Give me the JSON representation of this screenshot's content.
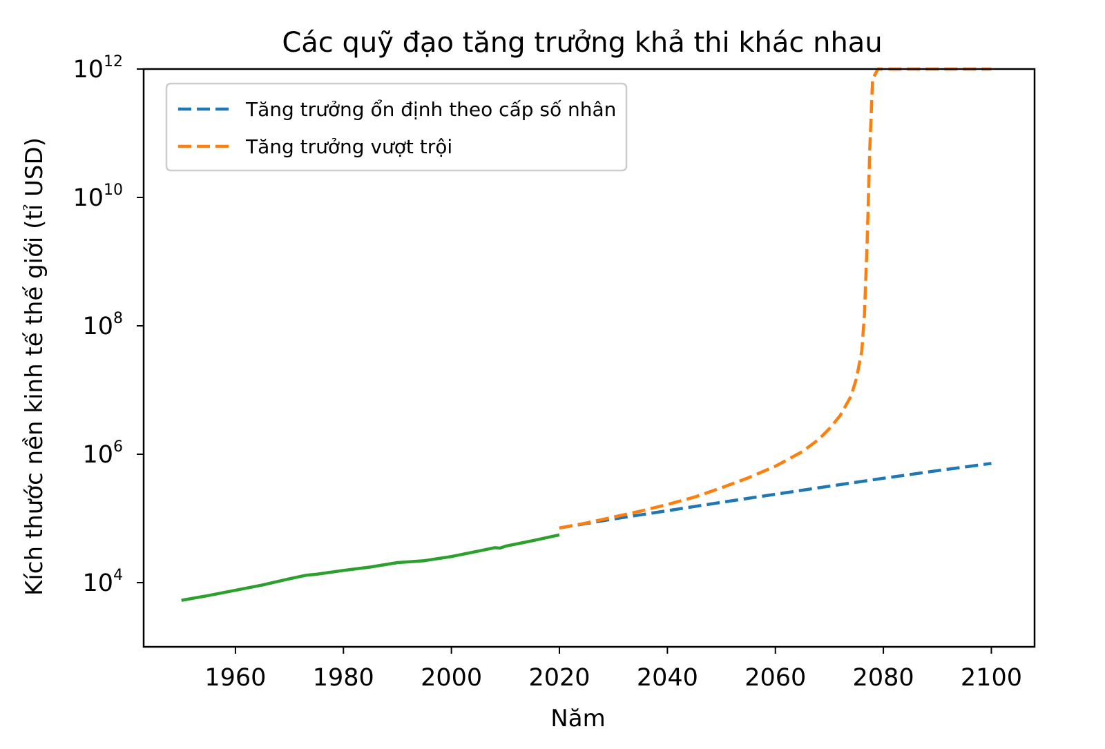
{
  "chart_data": {
    "type": "line",
    "title": "Các quỹ đạo tăng trưởng khả thi khác nhau",
    "xlabel": "Năm",
    "ylabel": "Kích thước nền kinh tế thế giới (tỉ USD)",
    "xlim": [
      1943,
      2108
    ],
    "ylim": [
      1000,
      1000000000000
    ],
    "yscale": "log",
    "grid": false,
    "legend_position": "top-left",
    "x_ticks": [
      "1960",
      "1980",
      "2000",
      "2020",
      "2040",
      "2060",
      "2080",
      "2100"
    ],
    "x_tick_values": [
      1960,
      1980,
      2000,
      2020,
      2040,
      2060,
      2080,
      2100
    ],
    "y_ticks": [
      {
        "value": 10000,
        "base": "10",
        "exp": "4"
      },
      {
        "value": 1000000,
        "base": "10",
        "exp": "6"
      },
      {
        "value": 100000000,
        "base": "10",
        "exp": "8"
      },
      {
        "value": 10000000000,
        "base": "10",
        "exp": "10"
      },
      {
        "value": 1000000000000,
        "base": "10",
        "exp": "12"
      }
    ],
    "series": [
      {
        "name": "Tăng trưởng ổn định theo cấp số nhân",
        "color": "#1f77b4",
        "style": "dashed",
        "x": [
          2020,
          2030,
          2040,
          2050,
          2060,
          2070,
          2080,
          2090,
          2100
        ],
        "y": [
          71000,
          98000,
          132000,
          178000,
          238000,
          318000,
          422000,
          555000,
          720000
        ]
      },
      {
        "name": "Tăng trưởng vượt trội",
        "color": "#ff7f0e",
        "style": "dashed",
        "x": [
          2020,
          2025,
          2030,
          2035,
          2040,
          2045,
          2050,
          2055,
          2060,
          2065,
          2068,
          2070,
          2072,
          2074,
          2075,
          2076,
          2076.5,
          2077,
          2077.5,
          2078,
          2079,
          2085,
          2090,
          2095,
          2100
        ],
        "y": [
          71000,
          85000,
          105000,
          130000,
          165000,
          215000,
          300000,
          430000,
          650000,
          1100000,
          1700000,
          2500000,
          4000000,
          8000000,
          15000000,
          40000000,
          150000000,
          2000000000,
          60000000000,
          700000000000,
          1000000000000,
          1000000000000,
          1000000000000,
          1000000000000,
          1000000000000
        ]
      },
      {
        "name": "",
        "color": "#2ca02c",
        "style": "solid",
        "x": [
          1950,
          1955,
          1960,
          1965,
          1970,
          1973,
          1975,
          1980,
          1985,
          1990,
          1995,
          2000,
          2005,
          2008,
          2009,
          2010,
          2015,
          2020
        ],
        "y": [
          5300,
          6300,
          7600,
          9200,
          11500,
          13000,
          13500,
          15500,
          17500,
          20500,
          22000,
          25500,
          31000,
          35000,
          34500,
          37000,
          45000,
          55500
        ]
      }
    ]
  }
}
